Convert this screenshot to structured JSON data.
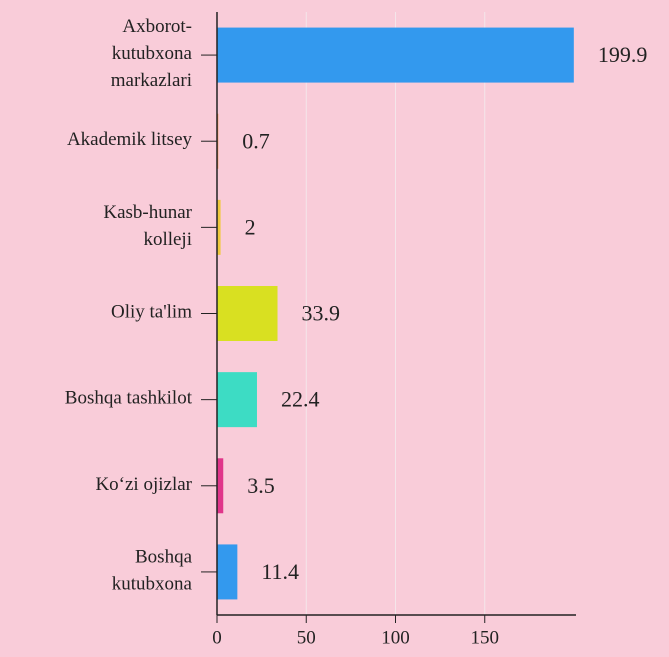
{
  "chart_data": {
    "type": "bar",
    "orientation": "horizontal",
    "categories": [
      [
        "Axborot-",
        "kutubxona",
        "markazlari"
      ],
      [
        "Akademik litsey"
      ],
      [
        "Kasb-hunar",
        "kolleji"
      ],
      [
        "Oliy ta'lim"
      ],
      [
        "Boshqa tashkilot"
      ],
      [
        "Ko‘zi ojizlar"
      ],
      [
        "Boshqa",
        "kutubxona"
      ]
    ],
    "values": [
      199.9,
      0.7,
      2,
      33.9,
      22.4,
      3.5,
      11.4
    ],
    "colors": [
      "#3399ee",
      "#f08a3c",
      "#f0c83c",
      "#d9e021",
      "#3ddcc4",
      "#e0358a",
      "#3399ee"
    ],
    "xlim": [
      0,
      200
    ],
    "xticks": [
      0,
      50,
      100,
      150
    ],
    "grid": true
  }
}
